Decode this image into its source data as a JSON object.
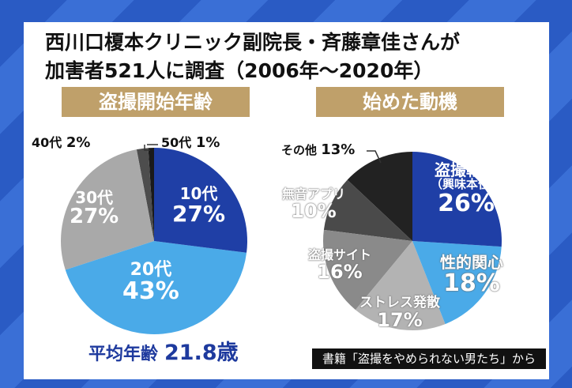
{
  "title_line1": "西川口榎本クリニック副院長・斉藤章佳さんが",
  "title_line2": "加害者521人に調査（2006年〜2020年）",
  "average_age": {
    "label": "平均年齢",
    "value": "21.8歳"
  },
  "source": "書籍「盗撮をやめられない男たち」から",
  "chart_data": [
    {
      "type": "pie",
      "title": "盗撮開始年齢",
      "start": "top-clockwise",
      "slices": [
        {
          "label": "10代",
          "value": 27,
          "text": "27%",
          "color": "#1f3fa6"
        },
        {
          "label": "20代",
          "value": 43,
          "text": "43%",
          "color": "#4aaae8"
        },
        {
          "label": "30代",
          "value": 27,
          "text": "27%",
          "color": "#a9a9a9"
        },
        {
          "label": "40代",
          "value": 2,
          "text": "2%",
          "color": "#4d4d4d"
        },
        {
          "label": "50代",
          "value": 1,
          "text": "1%",
          "color": "#1a1a1a"
        }
      ]
    },
    {
      "type": "pie",
      "title": "始めた動機",
      "start": "top-clockwise",
      "slices": [
        {
          "label": "盗撮軽視",
          "sublabel": "（興味本位）",
          "value": 26,
          "text": "26%",
          "color": "#1f3fa6"
        },
        {
          "label": "性的関心",
          "value": 18,
          "text": "18%",
          "color": "#4aaae8"
        },
        {
          "label": "ストレス発散",
          "value": 17,
          "text": "17%",
          "color": "#b3b3b3"
        },
        {
          "label": "盗撮サイト",
          "value": 16,
          "text": "16%",
          "color": "#8a8a8a"
        },
        {
          "label": "無音アプリ",
          "value": 10,
          "text": "10%",
          "color": "#4a4a4a"
        },
        {
          "label": "その他",
          "value": 13,
          "text": "13%",
          "color": "#222222"
        }
      ]
    }
  ]
}
